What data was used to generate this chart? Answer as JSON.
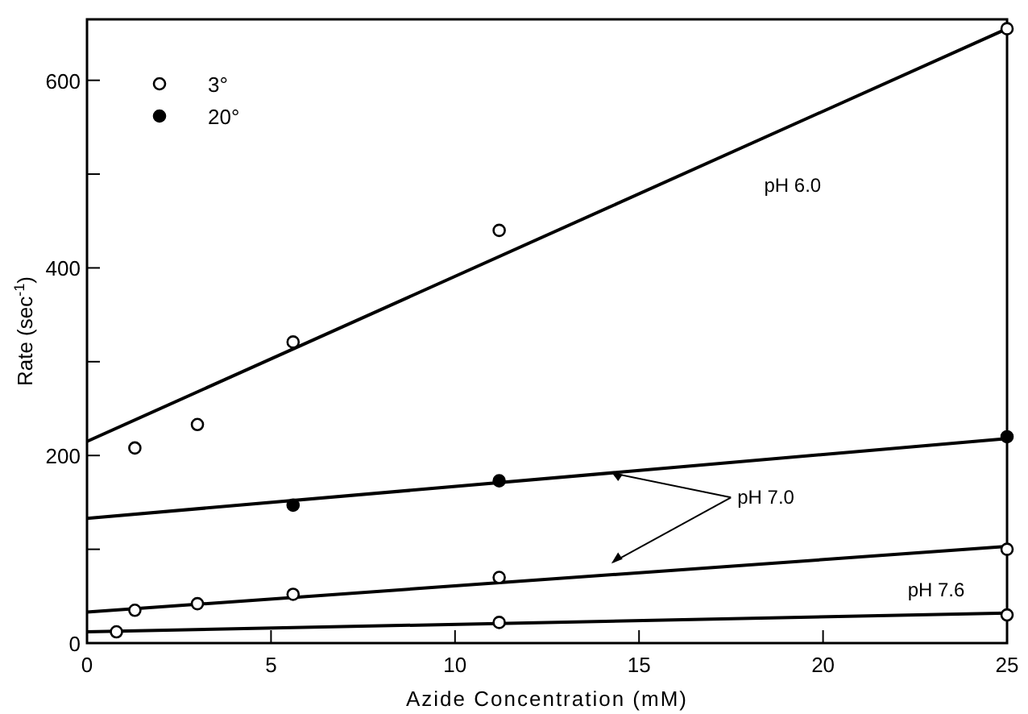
{
  "chart_data": {
    "type": "scatter",
    "xlabel": "Azide Concentration (mM)",
    "ylabel": "Rate (sec$^{-1}$)",
    "xlim": [
      0,
      25
    ],
    "ylim": [
      0,
      665
    ],
    "xticks": [
      0,
      5,
      10,
      15,
      20,
      25
    ],
    "yticks": [
      0,
      {
        "value": 100,
        "label": null
      },
      200,
      {
        "value": 300,
        "label": null
      },
      400,
      {
        "value": 500,
        "label": null
      },
      600
    ],
    "grid": false,
    "legend": "top left",
    "marker": "circle",
    "series": [
      {
        "name": "3°",
        "color": "#ffffff",
        "x": [
          1.3,
          3.0,
          5.6,
          11.2,
          25,
          1.3,
          3.0,
          5.6,
          11.2,
          25,
          0.8,
          11.2,
          25
        ],
        "values": [
          208,
          233,
          321,
          440,
          655,
          35,
          42,
          52,
          70,
          100,
          12,
          22,
          30
        ]
      },
      {
        "name": "20°",
        "color": "#000000",
        "x": [
          5.6,
          11.2,
          25
        ],
        "values": [
          147,
          173,
          220
        ]
      },
      {
        "type": "line",
        "color": "#000000",
        "marker": "none",
        "line_style": "solid",
        "x": [
          0,
          25
        ],
        "values": [
          215,
          655
        ]
      },
      {
        "type": "line",
        "color": "#000000",
        "marker": "none",
        "line_style": "solid",
        "x": [
          0,
          25
        ],
        "values": [
          133,
          218
        ]
      },
      {
        "type": "line",
        "color": "#000000",
        "marker": "none",
        "line_style": "solid",
        "x": [
          0,
          25
        ],
        "values": [
          33,
          103
        ]
      },
      {
        "type": "line",
        "color": "#000000",
        "marker": "none",
        "line_style": "solid",
        "x": [
          0,
          25
        ],
        "values": [
          12,
          32
        ]
      }
    ],
    "annotations": [
      "pH 6.0",
      {
        "text": "pH 7.0",
        "x": 14.3,
        "y": 181
      },
      "pH 7.6"
    ]
  }
}
